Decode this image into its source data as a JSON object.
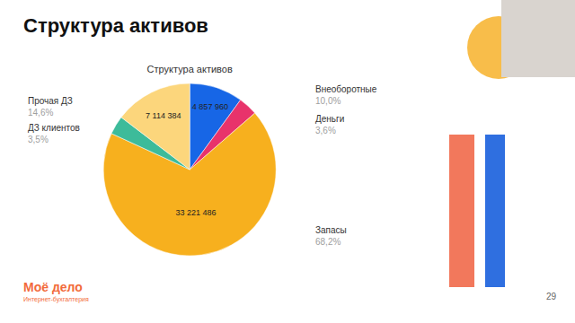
{
  "slide": {
    "heading": "Структура активов",
    "logo": "Моё дело",
    "logo_subtitle": "Интернет-бухгалтерия",
    "page_number": "29"
  },
  "chart_data": {
    "type": "pie",
    "title": "Структура активов",
    "categories": [
      "Внеоборотные",
      "Деньги",
      "Запасы",
      "ДЗ клиентов",
      "Прочая ДЗ"
    ],
    "values": [
      10.0,
      3.6,
      68.2,
      3.5,
      14.6
    ],
    "value_labels": [
      "10,0%",
      "3,6%",
      "68,2%",
      "3,5%",
      "14,6%"
    ],
    "amounts": [
      4857960,
      null,
      33221486,
      null,
      7114384
    ],
    "amount_labels": [
      "4 857 960",
      null,
      "33 221 486",
      null,
      "7 114 384"
    ],
    "colors": [
      "#1766e6",
      "#e8336b",
      "#f7b01e",
      "#3dbb9a",
      "#fcd67c"
    ],
    "data_labels": true
  }
}
